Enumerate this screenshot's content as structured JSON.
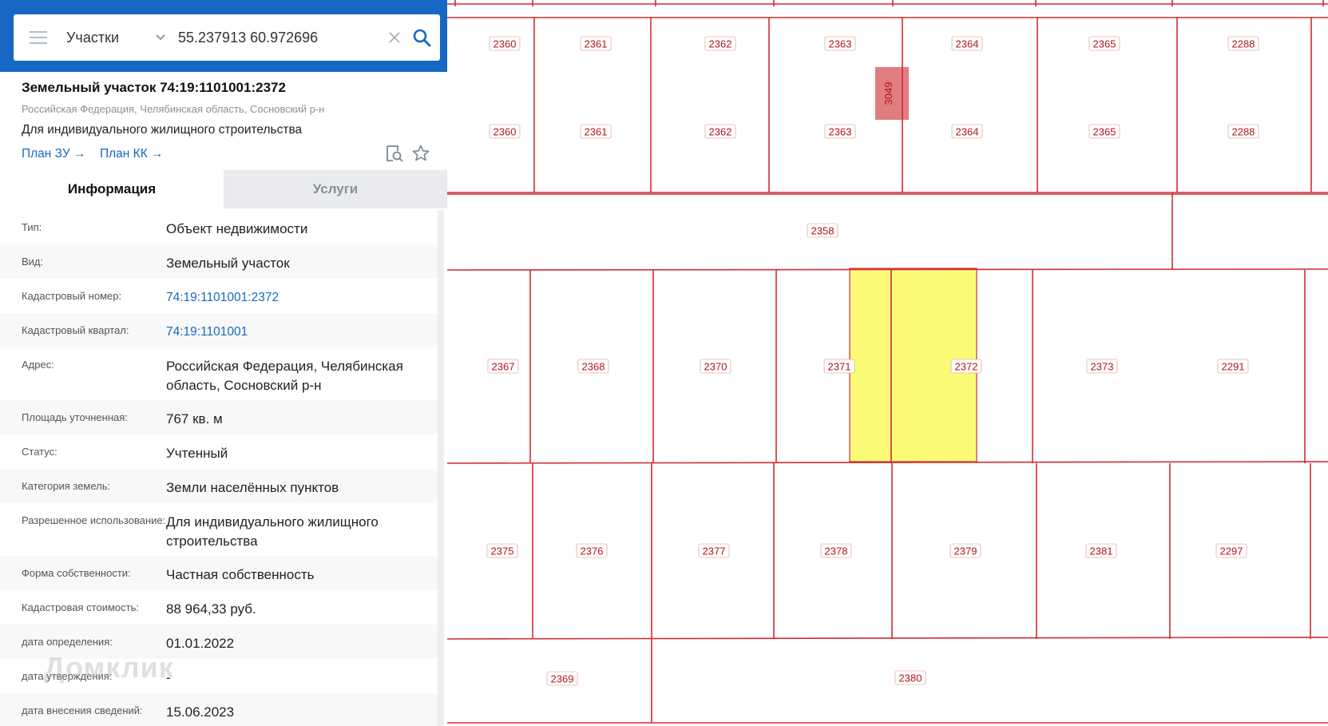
{
  "search": {
    "layer_label": "Участки",
    "query_value": "55.237913 60.972696"
  },
  "object": {
    "title": "Земельный участок 74:19:1101001:2372",
    "address_line": "Российская Федерация, Челябинская область, Сосновский р-н",
    "purpose_line": "Для индивидуального жилищного строительства",
    "plan_zu_label": "План ЗУ →",
    "plan_kk_label": "План КК →"
  },
  "tabs": [
    {
      "label": "Информация",
      "active": true
    },
    {
      "label": "Услуги",
      "active": false
    }
  ],
  "info_rows": [
    {
      "key": "Тип:",
      "value": "Объект недвижимости",
      "link": false
    },
    {
      "key": "Вид:",
      "value": "Земельный участок",
      "link": false
    },
    {
      "key": "Кадастровый номер:",
      "value": "74:19:1101001:2372",
      "link": true
    },
    {
      "key": "Кадастровый квартал:",
      "value": "74:19:1101001",
      "link": true
    },
    {
      "key": "Адрес:",
      "value": "Российская Федерация, Челябинская область, Сосновский р-н",
      "link": false
    },
    {
      "key": "Площадь уточненная:",
      "value": "767 кв. м",
      "link": false
    },
    {
      "key": "Статус:",
      "value": "Учтенный",
      "link": false
    },
    {
      "key": "Категория земель:",
      "value": "Земли населённых пунктов",
      "link": false
    },
    {
      "key": "Разрешенное использование:",
      "value": "Для индивидуального жилищного строительства",
      "link": false
    },
    {
      "key": "Форма собственности:",
      "value": "Частная собственность",
      "link": false
    },
    {
      "key": "Кадастровая стоимость:",
      "value": "88 964,33 руб.",
      "link": false
    },
    {
      "key": "дата определения:",
      "value": "01.01.2022",
      "link": false
    },
    {
      "key": "дата утверждения:",
      "value": "-",
      "link": false
    },
    {
      "key": "дата внесения сведений:",
      "value": "15.06.2023",
      "link": false
    }
  ],
  "watermark": "Домклик",
  "map": {
    "selected_plot": "2372",
    "colors": {
      "boundary": "#d42a35",
      "selected_fill": "#fbfb78",
      "building_fill": "#e07d7f",
      "panel_header": "#1668c4"
    },
    "plot_labels": {
      "row1": [
        "2360",
        "2361",
        "2362",
        "2363",
        "2364",
        "2365",
        "2288"
      ],
      "row2": [
        "2360",
        "2361",
        "2362",
        "2363",
        "2364",
        "2365",
        "2288"
      ],
      "street": "2358",
      "row3": [
        "2367",
        "2368",
        "2370",
        "2371",
        "2372",
        "2373",
        "2291"
      ],
      "row4": [
        "2375",
        "2376",
        "2377",
        "2378",
        "2379",
        "2381",
        "2297"
      ],
      "row5": [
        "2369",
        "2380"
      ],
      "building": "3049"
    }
  }
}
